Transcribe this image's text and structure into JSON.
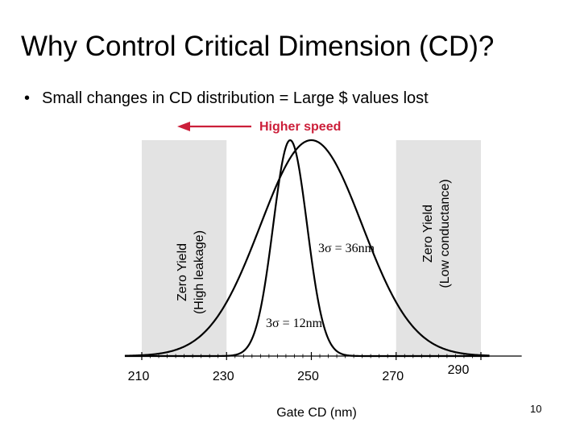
{
  "slide": {
    "title": "Why Control Critical Dimension (CD)?",
    "bullet": "Small changes in CD distribution = Large $ values lost",
    "bullet_symbol": "•",
    "page_number": "10"
  },
  "chart_data": {
    "type": "line",
    "xlabel": "Gate CD (nm)",
    "ylabel": "",
    "xlim": [
      205,
      300
    ],
    "ticks": [
      {
        "x": 210,
        "label": "210"
      },
      {
        "x": 230,
        "label": "230"
      },
      {
        "x": 250,
        "label": "250"
      },
      {
        "x": 270,
        "label": "270"
      },
      {
        "x": 290,
        "label": "290"
      }
    ],
    "series": [
      {
        "name": "3σ = 36nm",
        "mean": 250,
        "three_sigma": 36,
        "peak": 1.0
      },
      {
        "name": "3σ = 12nm",
        "mean": 245,
        "three_sigma": 12,
        "peak": 1.0
      }
    ],
    "zones": [
      {
        "label_line1": "Zero Yield",
        "label_line2": "(High leakage)",
        "from": 210,
        "to": 230,
        "color": "#e3e3e3"
      },
      {
        "label_line1": "Zero Yield",
        "label_line2": "(Low conductance)",
        "from": 270,
        "to": 290,
        "color": "#e3e3e3"
      }
    ],
    "annotation": {
      "text": "Higher speed",
      "direction": "left",
      "color": "#cc1f3a"
    },
    "grid": false,
    "legend": "none"
  }
}
